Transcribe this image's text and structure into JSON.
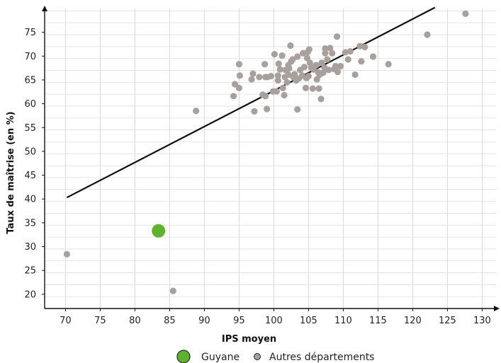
{
  "chart_data": {
    "type": "scatter",
    "xlabel": "IPS moyen",
    "ylabel": "Taux de maîtrise (en %)",
    "xlim": [
      67,
      132
    ],
    "ylim": [
      17,
      80
    ],
    "x_ticks": [
      70,
      75,
      80,
      85,
      90,
      95,
      100,
      105,
      110,
      115,
      120,
      125,
      130
    ],
    "y_ticks": [
      20,
      25,
      30,
      35,
      40,
      45,
      50,
      55,
      60,
      65,
      70,
      75
    ],
    "grid": true,
    "legend_position": "bottom",
    "colors": {
      "highlight": "#5fb130",
      "others": "#a8a09c",
      "trend": "#111111",
      "grid": "#d9d9d9"
    },
    "trend_line": {
      "x": [
        70.2,
        123.2
      ],
      "y": [
        40.3,
        80.2
      ]
    },
    "series": [
      {
        "name": "Guyane",
        "points": [
          [
            83.4,
            33.3
          ]
        ]
      },
      {
        "name": "Autres départements",
        "points": [
          [
            70.2,
            28.4
          ],
          [
            85.5,
            20.7
          ],
          [
            88.8,
            58.5
          ],
          [
            94.2,
            61.6
          ],
          [
            94.4,
            64.1
          ],
          [
            95.0,
            68.3
          ],
          [
            95.0,
            63.3
          ],
          [
            95.1,
            65.9
          ],
          [
            96.8,
            65.1
          ],
          [
            97.0,
            66.3
          ],
          [
            97.2,
            58.4
          ],
          [
            97.9,
            65.6
          ],
          [
            98.4,
            61.9
          ],
          [
            98.7,
            68.3
          ],
          [
            98.8,
            61.6
          ],
          [
            98.8,
            65.6
          ],
          [
            99.0,
            58.9
          ],
          [
            99.1,
            65.6
          ],
          [
            99.6,
            65.8
          ],
          [
            99.9,
            62.6
          ],
          [
            100.1,
            70.4
          ],
          [
            100.4,
            62.6
          ],
          [
            100.6,
            65.9
          ],
          [
            100.6,
            64.9
          ],
          [
            100.7,
            68.4
          ],
          [
            100.9,
            67.2
          ],
          [
            101.2,
            70.1
          ],
          [
            101.3,
            63.3
          ],
          [
            101.5,
            61.8
          ],
          [
            101.6,
            65.6
          ],
          [
            101.7,
            67.1
          ],
          [
            101.9,
            64.5
          ],
          [
            102.1,
            68.1
          ],
          [
            102.1,
            66.1
          ],
          [
            102.2,
            67.4
          ],
          [
            102.4,
            72.2
          ],
          [
            102.5,
            68.9
          ],
          [
            102.7,
            69.3
          ],
          [
            102.8,
            65.6
          ],
          [
            103.0,
            66.2
          ],
          [
            103.2,
            64.9
          ],
          [
            103.4,
            58.8
          ],
          [
            103.4,
            69.9
          ],
          [
            103.6,
            65.3
          ],
          [
            103.8,
            67.1
          ],
          [
            104.1,
            65.9
          ],
          [
            104.2,
            70.6
          ],
          [
            104.4,
            67.7
          ],
          [
            104.6,
            63.3
          ],
          [
            104.7,
            65.4
          ],
          [
            104.8,
            69.6
          ],
          [
            104.9,
            70.9
          ],
          [
            105.0,
            65.8
          ],
          [
            105.1,
            71.4
          ],
          [
            105.2,
            68.6
          ],
          [
            105.4,
            67.6
          ],
          [
            105.6,
            63.2
          ],
          [
            105.7,
            67.2
          ],
          [
            106.1,
            68.1
          ],
          [
            106.2,
            65.1
          ],
          [
            106.4,
            66.6
          ],
          [
            106.5,
            63.2
          ],
          [
            106.6,
            66.1
          ],
          [
            106.8,
            61.0
          ],
          [
            106.9,
            68.6
          ],
          [
            107.1,
            66.5
          ],
          [
            107.3,
            67.6
          ],
          [
            107.4,
            70.6
          ],
          [
            107.4,
            71.6
          ],
          [
            107.7,
            69.3
          ],
          [
            107.9,
            67.1
          ],
          [
            108.1,
            71.7
          ],
          [
            108.4,
            70.6
          ],
          [
            108.7,
            67.3
          ],
          [
            108.9,
            67.9
          ],
          [
            109.1,
            74.1
          ],
          [
            109.2,
            66.7
          ],
          [
            109.6,
            67.9
          ],
          [
            110.3,
            70.8
          ],
          [
            110.7,
            69.3
          ],
          [
            111.0,
            71.0
          ],
          [
            111.7,
            66.1
          ],
          [
            112.4,
            72.1
          ],
          [
            112.6,
            68.9
          ],
          [
            113.1,
            71.9
          ],
          [
            114.3,
            69.9
          ],
          [
            116.5,
            68.3
          ],
          [
            122.1,
            74.5
          ],
          [
            127.6,
            78.9
          ]
        ]
      }
    ]
  }
}
